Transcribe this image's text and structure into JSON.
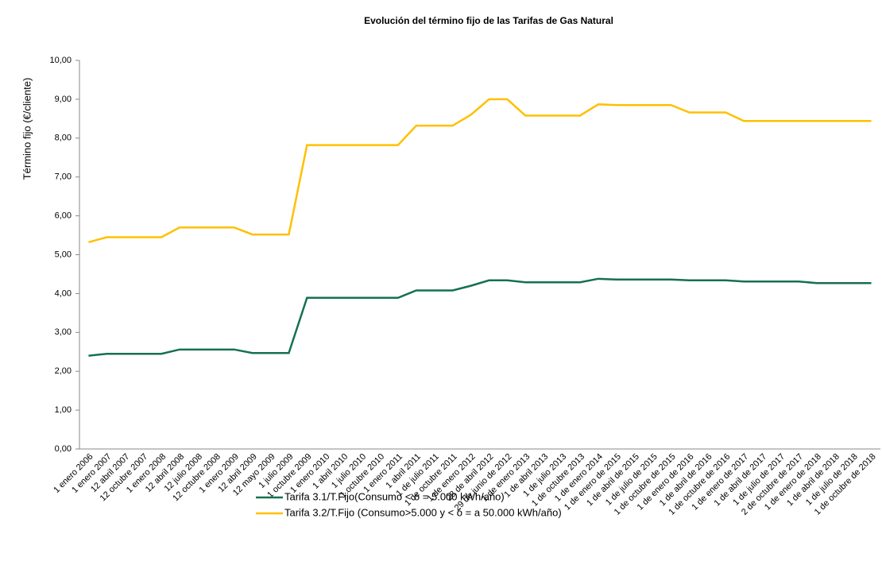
{
  "chart_data": {
    "type": "line",
    "title": "Evolución del término fijo de las Tarifas de Gas Natural",
    "y_label": "Término fijo (€/cliente)",
    "categories": [
      "1 enero 2006",
      "1 enero 2007",
      "12 abril 2007",
      "12 octubre 2007",
      "1 enero 2008",
      "12 abril 2008",
      "12 julio 2008",
      "12 octubre 2008",
      "1 enero 2009",
      "12 abril 2009",
      "12 mayo 2009",
      "1 julio 2009",
      "1 octubre 2009",
      "1 enero 2010",
      "1 abril 2010",
      "1 julio 2010",
      "1 octubre 2010",
      "1 enero 2011",
      "1 abril 2011",
      "1 de julio 2011",
      "1 de octubre 2011",
      "1 de enero 2012",
      "28 de abril 2012",
      "29 de junio de 2012",
      "1 de enero 2013",
      "1 de abril 2013",
      "1 de julio 2013",
      "1 de octubre 2013",
      "1 de enero 2014",
      "1 de enero de 2015",
      "1 de abril de 2015",
      "1 de julio de 2015",
      "1 de octubre de 2015",
      "1 de enero de 2016",
      "1 de abril de 2016",
      "1 de octubre de 2016",
      "1 de enero de 2017",
      "1 de abril de 2017",
      "1 de julio de 2017",
      "2 de octubre de 2017",
      "1 de enero de 2018",
      "1 de abril de 2018",
      "1 de julio de 2018",
      "1 de octubre de 2018"
    ],
    "series": [
      {
        "name": "Tarifa 3.1/T.Fijo(Consumo < ó = 5.000  kWh/año)",
        "color": "#15714f",
        "values": [
          2.4,
          2.45,
          2.45,
          2.45,
          2.45,
          2.56,
          2.56,
          2.56,
          2.56,
          2.47,
          2.47,
          2.47,
          3.89,
          3.89,
          3.89,
          3.89,
          3.89,
          3.89,
          4.08,
          4.08,
          4.08,
          4.2,
          4.34,
          4.34,
          4.29,
          4.29,
          4.29,
          4.29,
          4.38,
          4.36,
          4.36,
          4.36,
          4.36,
          4.34,
          4.34,
          4.34,
          4.31,
          4.31,
          4.31,
          4.31,
          4.27,
          4.27,
          4.27,
          4.27
        ]
      },
      {
        "name": "Tarifa 3.2/T.Fijo (Consumo>5.000 y < ó = a 50.000 kWh/año)",
        "color": "#ffc000",
        "values": [
          5.32,
          5.45,
          5.45,
          5.45,
          5.45,
          5.7,
          5.7,
          5.7,
          5.7,
          5.52,
          5.52,
          5.52,
          7.82,
          7.82,
          7.82,
          7.82,
          7.82,
          7.82,
          8.32,
          8.32,
          8.32,
          8.6,
          9.0,
          9.0,
          8.58,
          8.58,
          8.58,
          8.58,
          8.87,
          8.85,
          8.85,
          8.85,
          8.85,
          8.66,
          8.66,
          8.66,
          8.44,
          8.44,
          8.44,
          8.44,
          8.44,
          8.44,
          8.44,
          8.44
        ]
      }
    ],
    "ylim": [
      0,
      10
    ],
    "yticks": [
      {
        "value": 0,
        "label": "0,00"
      },
      {
        "value": 1,
        "label": "1,00"
      },
      {
        "value": 2,
        "label": "2,00"
      },
      {
        "value": 3,
        "label": "3,00"
      },
      {
        "value": 4,
        "label": "4,00"
      },
      {
        "value": 5,
        "label": "5,00"
      },
      {
        "value": 6,
        "label": "6,00"
      },
      {
        "value": 7,
        "label": "7,00"
      },
      {
        "value": 8,
        "label": "8,00"
      },
      {
        "value": 9,
        "label": "9,00"
      },
      {
        "value": 10,
        "label": "10,00"
      }
    ],
    "grid": false,
    "legend": "bottom"
  }
}
